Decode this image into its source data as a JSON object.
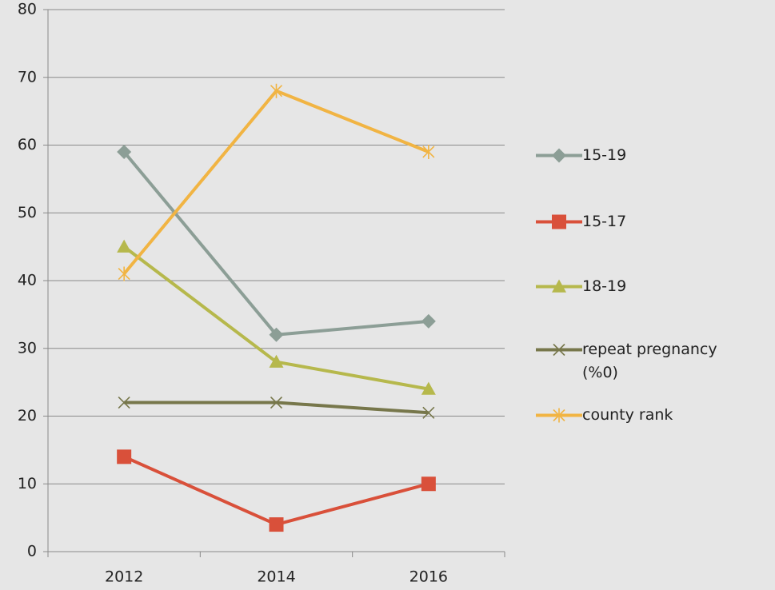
{
  "chart_data": {
    "type": "line",
    "categories": [
      "2012",
      "2014",
      "2016"
    ],
    "series": [
      {
        "name": "15-19",
        "color": "#8c9e96",
        "marker": "diamond",
        "values": [
          59,
          32,
          34
        ]
      },
      {
        "name": "15-17",
        "color": "#d9503a",
        "marker": "square",
        "values": [
          14,
          4,
          10
        ]
      },
      {
        "name": "18-19",
        "color": "#b6b84c",
        "marker": "triangle",
        "values": [
          45,
          28,
          24
        ]
      },
      {
        "name": "repeat pregnancy (%0)",
        "color": "#77774b",
        "marker": "x",
        "values": [
          22,
          22,
          20.5
        ]
      },
      {
        "name": "county rank",
        "color": "#f1b443",
        "marker": "asterisk",
        "values": [
          41,
          68,
          59
        ]
      }
    ],
    "ylim": [
      0,
      80
    ],
    "yticks": [
      0,
      10,
      20,
      30,
      40,
      50,
      60,
      70,
      80
    ],
    "grid": true,
    "legend": "right"
  }
}
